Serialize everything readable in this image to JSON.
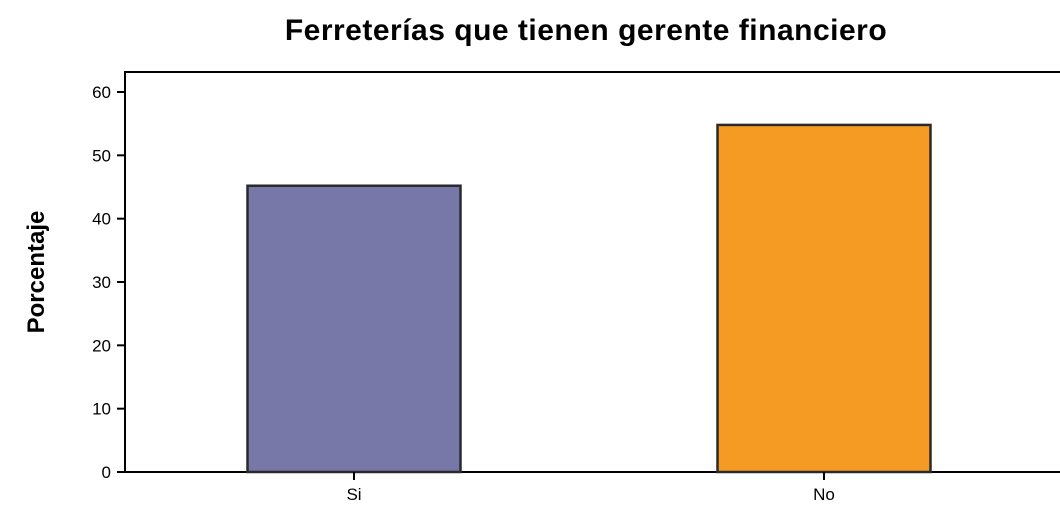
{
  "chart_data": {
    "type": "bar",
    "title": "Ferreterías que tienen gerente financiero",
    "xlabel": "",
    "ylabel": "Porcentaje",
    "categories": [
      "Si",
      "No"
    ],
    "values": [
      45.2,
      54.8
    ],
    "colors": [
      "#7878a8",
      "#f59a23"
    ],
    "ylim": [
      0,
      60
    ],
    "yticks": [
      0,
      10,
      20,
      30,
      40,
      50,
      60
    ],
    "grid": false,
    "legend": "none"
  }
}
